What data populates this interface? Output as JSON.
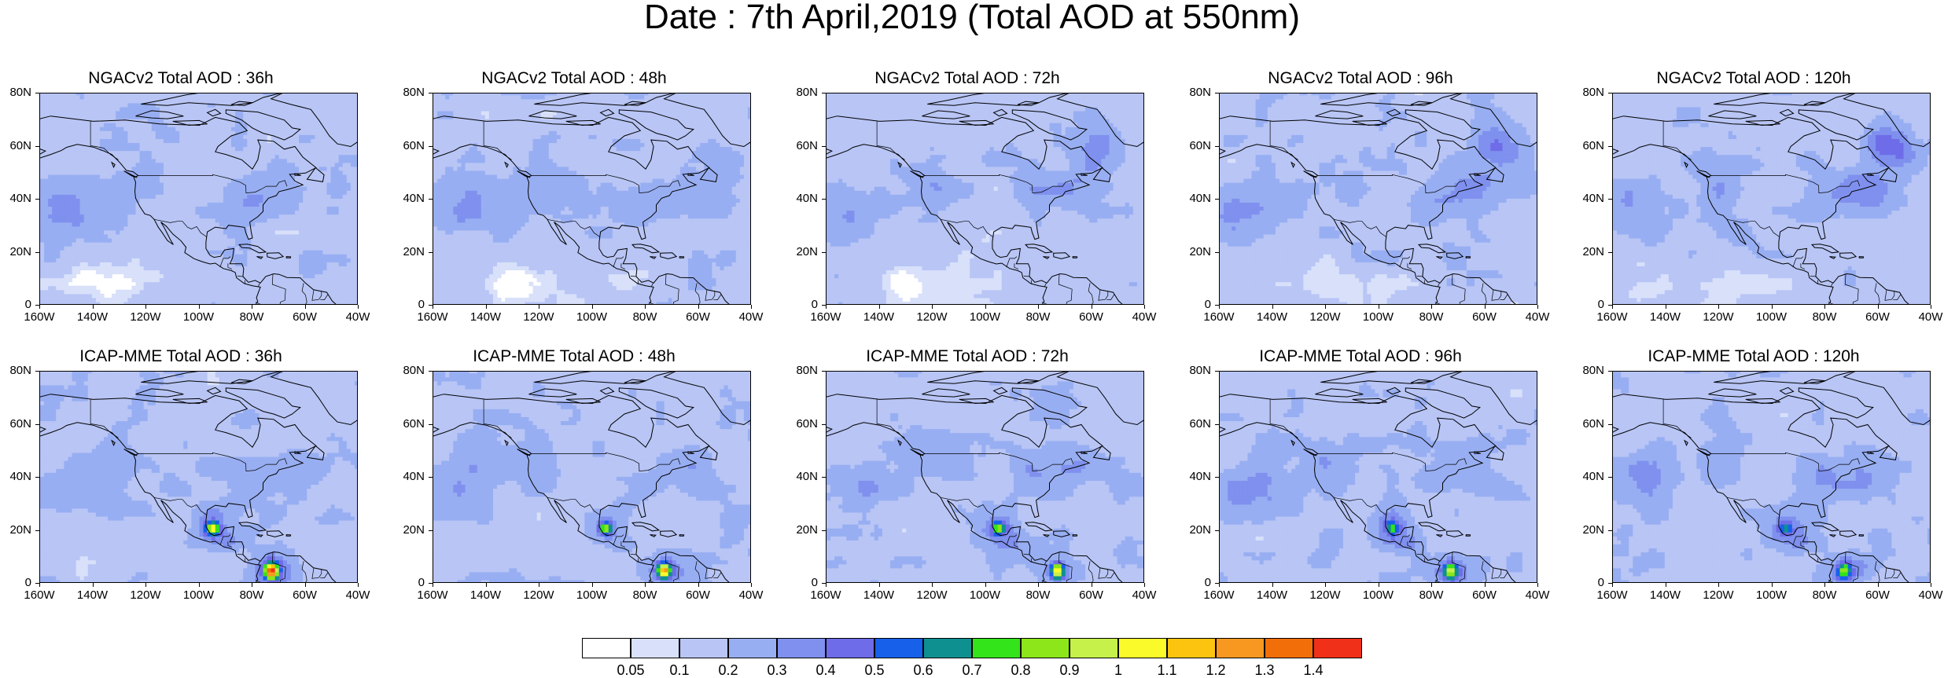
{
  "title": "Date : 7th April,2019 (Total AOD at 550nm)",
  "panels": [
    {
      "title": "NGACv2 Total AOD : 36h",
      "model": "NGACv2",
      "lead": "36h"
    },
    {
      "title": "NGACv2 Total AOD : 48h",
      "model": "NGACv2",
      "lead": "48h"
    },
    {
      "title": "NGACv2 Total AOD : 72h",
      "model": "NGACv2",
      "lead": "72h"
    },
    {
      "title": "NGACv2 Total AOD : 96h",
      "model": "NGACv2",
      "lead": "96h"
    },
    {
      "title": "NGACv2 Total AOD : 120h",
      "model": "NGACv2",
      "lead": "120h"
    },
    {
      "title": "ICAP-MME Total AOD : 36h",
      "model": "ICAP-MME",
      "lead": "36h"
    },
    {
      "title": "ICAP-MME Total AOD : 48h",
      "model": "ICAP-MME",
      "lead": "48h"
    },
    {
      "title": "ICAP-MME Total AOD : 72h",
      "model": "ICAP-MME",
      "lead": "72h"
    },
    {
      "title": "ICAP-MME Total AOD : 96h",
      "model": "ICAP-MME",
      "lead": "96h"
    },
    {
      "title": "ICAP-MME Total AOD : 120h",
      "model": "ICAP-MME",
      "lead": "120h"
    }
  ],
  "map": {
    "lat_ticks": [
      "80N",
      "60N",
      "40N",
      "20N",
      "0"
    ],
    "lon_ticks": [
      "160W",
      "140W",
      "120W",
      "100W",
      "80W",
      "60W",
      "40W"
    ],
    "lat_range": [
      0,
      80
    ],
    "lon_range": [
      -160,
      -40
    ]
  },
  "colorbar": {
    "levels": [
      "0.05",
      "0.1",
      "0.2",
      "0.3",
      "0.4",
      "0.5",
      "0.6",
      "0.7",
      "0.8",
      "0.9",
      "1",
      "1.1",
      "1.2",
      "1.3",
      "1.4"
    ],
    "colors": [
      "#ffffff",
      "#d8e0fa",
      "#b8c5f5",
      "#98aef2",
      "#7f90ee",
      "#6e6ce8",
      "#1760ea",
      "#0f9090",
      "#33e41a",
      "#8ce61a",
      "#c6f04a",
      "#fafa2a",
      "#fcc40e",
      "#f89820",
      "#f26e08",
      "#f03018"
    ]
  }
}
